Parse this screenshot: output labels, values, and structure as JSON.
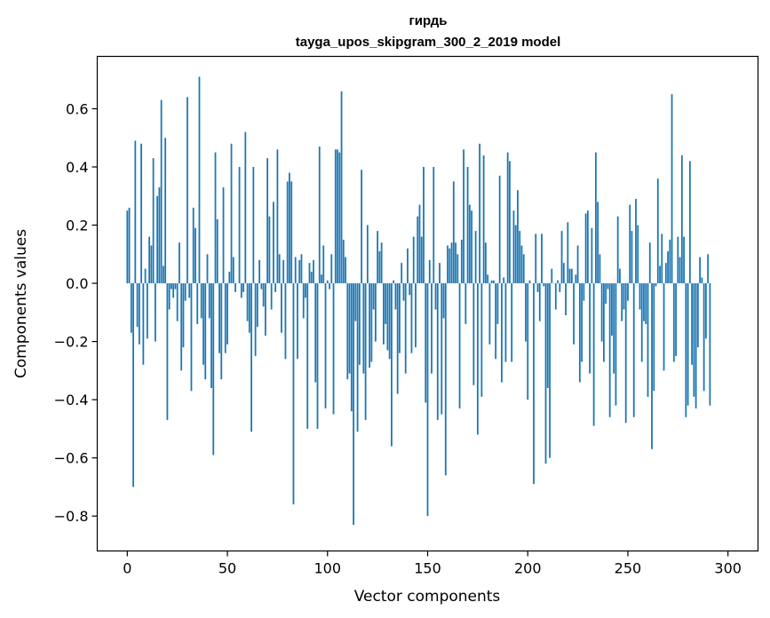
{
  "chart_data": {
    "type": "bar",
    "title": "гирдь",
    "subtitle": "tayga_upos_skipgram_300_2_2019 model",
    "xlabel": "Vector components",
    "ylabel": "Components values",
    "xlim": [
      -15,
      315
    ],
    "ylim": [
      -0.92,
      0.78
    ],
    "xticks": [
      0,
      50,
      100,
      150,
      200,
      250,
      300
    ],
    "yticks": [
      -0.8,
      -0.6,
      -0.4,
      -0.2,
      0.0,
      0.2,
      0.4,
      0.6
    ],
    "xtick_labels": [
      "0",
      "50",
      "100",
      "150",
      "200",
      "250",
      "300"
    ],
    "ytick_labels": [
      "−0.8",
      "−0.6",
      "−0.4",
      "−0.2",
      "0.0",
      "0.2",
      "0.4",
      "0.6"
    ],
    "bar_color": "#1f77b4",
    "values": [
      0.25,
      0.26,
      -0.17,
      -0.7,
      0.49,
      -0.15,
      -0.21,
      0.48,
      -0.28,
      0.05,
      -0.19,
      0.16,
      0.13,
      0.43,
      -0.2,
      0.3,
      0.33,
      0.63,
      0.06,
      0.5,
      -0.47,
      -0.09,
      -0.02,
      -0.05,
      -0.02,
      -0.13,
      0.14,
      -0.3,
      -0.22,
      -0.06,
      0.64,
      -0.05,
      -0.37,
      0.26,
      0.19,
      -0.14,
      0.71,
      -0.12,
      -0.28,
      -0.33,
      0.1,
      -0.12,
      -0.36,
      -0.59,
      0.45,
      0.22,
      -0.24,
      -0.33,
      0.33,
      -0.24,
      -0.21,
      0.04,
      0.48,
      0.09,
      -0.03,
      0.0,
      0.4,
      -0.05,
      -0.03,
      0.52,
      -0.13,
      -0.17,
      -0.51,
      0.4,
      -0.25,
      -0.15,
      0.08,
      -0.02,
      -0.08,
      -0.18,
      0.43,
      0.23,
      -0.09,
      0.28,
      -0.03,
      0.46,
      0.1,
      -0.17,
      0.08,
      -0.26,
      0.35,
      0.38,
      0.35,
      -0.76,
      0.09,
      -0.26,
      0.08,
      0.1,
      -0.12,
      -0.05,
      -0.5,
      0.07,
      0.04,
      0.08,
      -0.34,
      -0.5,
      0.47,
      0.03,
      0.13,
      -0.43,
      0.01,
      -0.02,
      0.1,
      -0.45,
      0.46,
      0.46,
      0.45,
      0.66,
      0.15,
      0.09,
      -0.33,
      -0.31,
      -0.44,
      -0.83,
      -0.13,
      -0.51,
      -0.28,
      0.39,
      -0.31,
      -0.47,
      0.2,
      -0.29,
      -0.27,
      -0.09,
      -0.2,
      0.18,
      0.11,
      0.14,
      -0.21,
      -0.14,
      -0.23,
      -0.26,
      -0.56,
      0.01,
      -0.09,
      -0.38,
      -0.24,
      0.07,
      -0.06,
      -0.31,
      0.12,
      -0.04,
      -0.24,
      0.16,
      -0.22,
      0.23,
      0.27,
      0.16,
      0.4,
      -0.41,
      -0.8,
      0.08,
      -0.31,
      0.4,
      -0.09,
      -0.47,
      0.07,
      -0.45,
      -0.12,
      -0.66,
      0.13,
      0.12,
      0.14,
      0.35,
      0.14,
      0.1,
      -0.43,
      0.15,
      0.46,
      -0.14,
      0.4,
      0.27,
      0.25,
      -0.35,
      0.18,
      -0.52,
      0.48,
      -0.39,
      0.44,
      0.14,
      0.03,
      -0.21,
      0.01,
      0.01,
      -0.26,
      -0.14,
      0.37,
      -0.34,
      0.02,
      -0.27,
      0.45,
      0.42,
      -0.27,
      0.25,
      0.2,
      0.32,
      0.18,
      0.13,
      0.1,
      -0.2,
      -0.4,
      0.01,
      0.0,
      -0.69,
      0.17,
      -0.03,
      -0.13,
      0.17,
      -0.01,
      -0.62,
      -0.36,
      -0.6,
      0.05,
      0.0,
      -0.09,
      0.01,
      -0.03,
      0.18,
      0.07,
      -0.11,
      0.21,
      0.05,
      0.05,
      -0.21,
      0.03,
      0.13,
      -0.34,
      -0.27,
      -0.06,
      0.24,
      0.25,
      -0.31,
      0.19,
      -0.49,
      0.45,
      0.28,
      0.1,
      -0.2,
      -0.27,
      -0.07,
      -0.02,
      -0.46,
      -0.18,
      -0.31,
      -0.42,
      0.23,
      0.05,
      -0.13,
      -0.09,
      -0.48,
      -0.06,
      0.27,
      0.18,
      -0.46,
      0.29,
      0.2,
      -0.09,
      -0.27,
      -0.13,
      -0.14,
      -0.39,
      0.14,
      -0.57,
      -0.37,
      -0.01,
      0.36,
      0.06,
      0.17,
      -0.3,
      0.07,
      0.11,
      0.15,
      0.65,
      -0.27,
      -0.25,
      0.16,
      0.09,
      0.44,
      0.16,
      -0.46,
      -0.42,
      0.42,
      -0.28,
      -0.39,
      -0.43,
      -0.22,
      0.09,
      0.02,
      -0.37,
      -0.19,
      0.1,
      -0.42
    ]
  }
}
